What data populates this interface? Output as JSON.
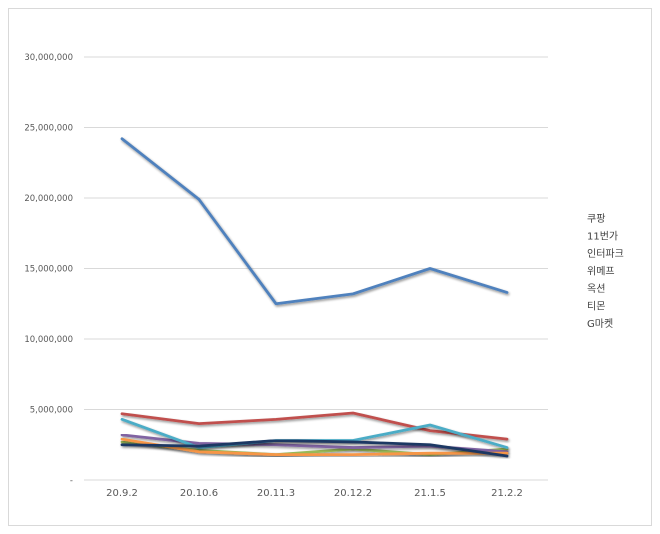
{
  "chart_data": {
    "type": "line",
    "title": "",
    "xlabel": "",
    "ylabel": "",
    "categories": [
      "20.9.2",
      "20.10.6",
      "20.11.3",
      "20.12.2",
      "21.1.5",
      "21.2.2"
    ],
    "ylim": [
      0,
      30000000
    ],
    "yticks": [
      0,
      5000000,
      10000000,
      15000000,
      20000000,
      25000000,
      30000000
    ],
    "ytick_labels": [
      "-",
      "5,000,000",
      "10,000,000",
      "15,000,000",
      "20,000,000",
      "25,000,000",
      "30,000,000"
    ],
    "grid": true,
    "legend_position": "right",
    "series": [
      {
        "name": "쿠팡",
        "color": "#4f81bd",
        "values": [
          24200000,
          19900000,
          12500000,
          13200000,
          15000000,
          13300000
        ]
      },
      {
        "name": "11번가",
        "color": "#c0504d",
        "values": [
          4700000,
          4000000,
          4300000,
          4750000,
          3500000,
          2900000
        ]
      },
      {
        "name": "인터파크",
        "color": "#9bbb59",
        "values": [
          2700000,
          2100000,
          1800000,
          2200000,
          1800000,
          2200000
        ]
      },
      {
        "name": "위메프",
        "color": "#8064a2",
        "values": [
          3200000,
          2600000,
          2500000,
          2300000,
          2400000,
          2000000
        ]
      },
      {
        "name": "옥션",
        "color": "#4bacc6",
        "values": [
          4300000,
          2300000,
          2800000,
          2800000,
          3900000,
          2300000
        ]
      },
      {
        "name": "티몬",
        "color": "#f79646",
        "values": [
          2900000,
          2000000,
          1800000,
          1800000,
          1900000,
          1900000
        ]
      },
      {
        "name": "G마켓",
        "color": "#1f3864",
        "values": [
          2500000,
          2400000,
          2800000,
          2700000,
          2500000,
          1700000
        ]
      }
    ]
  }
}
